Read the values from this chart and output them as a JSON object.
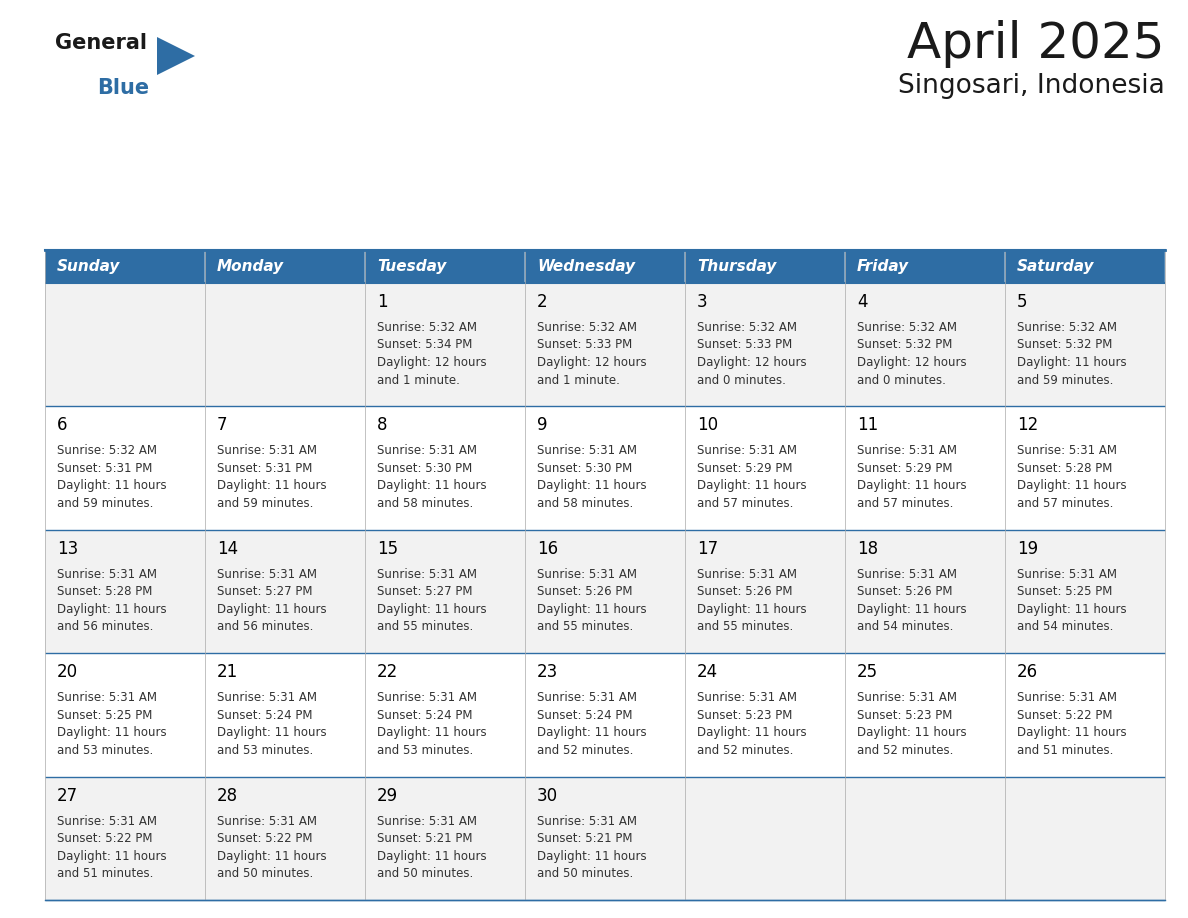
{
  "title": "April 2025",
  "subtitle": "Singosari, Indonesia",
  "header_bg": "#2E6DA4",
  "header_text_color": "#FFFFFF",
  "day_names": [
    "Sunday",
    "Monday",
    "Tuesday",
    "Wednesday",
    "Thursday",
    "Friday",
    "Saturday"
  ],
  "cell_bg_white": "#FFFFFF",
  "cell_bg_gray": "#F2F2F2",
  "border_color": "#2E6DA4",
  "separator_color": "#2E6DA4",
  "day_number_color": "#000000",
  "cell_text_color": "#333333",
  "calendar": [
    [
      {
        "day": null,
        "info": ""
      },
      {
        "day": null,
        "info": ""
      },
      {
        "day": 1,
        "info": "Sunrise: 5:32 AM\nSunset: 5:34 PM\nDaylight: 12 hours\nand 1 minute."
      },
      {
        "day": 2,
        "info": "Sunrise: 5:32 AM\nSunset: 5:33 PM\nDaylight: 12 hours\nand 1 minute."
      },
      {
        "day": 3,
        "info": "Sunrise: 5:32 AM\nSunset: 5:33 PM\nDaylight: 12 hours\nand 0 minutes."
      },
      {
        "day": 4,
        "info": "Sunrise: 5:32 AM\nSunset: 5:32 PM\nDaylight: 12 hours\nand 0 minutes."
      },
      {
        "day": 5,
        "info": "Sunrise: 5:32 AM\nSunset: 5:32 PM\nDaylight: 11 hours\nand 59 minutes."
      }
    ],
    [
      {
        "day": 6,
        "info": "Sunrise: 5:32 AM\nSunset: 5:31 PM\nDaylight: 11 hours\nand 59 minutes."
      },
      {
        "day": 7,
        "info": "Sunrise: 5:31 AM\nSunset: 5:31 PM\nDaylight: 11 hours\nand 59 minutes."
      },
      {
        "day": 8,
        "info": "Sunrise: 5:31 AM\nSunset: 5:30 PM\nDaylight: 11 hours\nand 58 minutes."
      },
      {
        "day": 9,
        "info": "Sunrise: 5:31 AM\nSunset: 5:30 PM\nDaylight: 11 hours\nand 58 minutes."
      },
      {
        "day": 10,
        "info": "Sunrise: 5:31 AM\nSunset: 5:29 PM\nDaylight: 11 hours\nand 57 minutes."
      },
      {
        "day": 11,
        "info": "Sunrise: 5:31 AM\nSunset: 5:29 PM\nDaylight: 11 hours\nand 57 minutes."
      },
      {
        "day": 12,
        "info": "Sunrise: 5:31 AM\nSunset: 5:28 PM\nDaylight: 11 hours\nand 57 minutes."
      }
    ],
    [
      {
        "day": 13,
        "info": "Sunrise: 5:31 AM\nSunset: 5:28 PM\nDaylight: 11 hours\nand 56 minutes."
      },
      {
        "day": 14,
        "info": "Sunrise: 5:31 AM\nSunset: 5:27 PM\nDaylight: 11 hours\nand 56 minutes."
      },
      {
        "day": 15,
        "info": "Sunrise: 5:31 AM\nSunset: 5:27 PM\nDaylight: 11 hours\nand 55 minutes."
      },
      {
        "day": 16,
        "info": "Sunrise: 5:31 AM\nSunset: 5:26 PM\nDaylight: 11 hours\nand 55 minutes."
      },
      {
        "day": 17,
        "info": "Sunrise: 5:31 AM\nSunset: 5:26 PM\nDaylight: 11 hours\nand 55 minutes."
      },
      {
        "day": 18,
        "info": "Sunrise: 5:31 AM\nSunset: 5:26 PM\nDaylight: 11 hours\nand 54 minutes."
      },
      {
        "day": 19,
        "info": "Sunrise: 5:31 AM\nSunset: 5:25 PM\nDaylight: 11 hours\nand 54 minutes."
      }
    ],
    [
      {
        "day": 20,
        "info": "Sunrise: 5:31 AM\nSunset: 5:25 PM\nDaylight: 11 hours\nand 53 minutes."
      },
      {
        "day": 21,
        "info": "Sunrise: 5:31 AM\nSunset: 5:24 PM\nDaylight: 11 hours\nand 53 minutes."
      },
      {
        "day": 22,
        "info": "Sunrise: 5:31 AM\nSunset: 5:24 PM\nDaylight: 11 hours\nand 53 minutes."
      },
      {
        "day": 23,
        "info": "Sunrise: 5:31 AM\nSunset: 5:24 PM\nDaylight: 11 hours\nand 52 minutes."
      },
      {
        "day": 24,
        "info": "Sunrise: 5:31 AM\nSunset: 5:23 PM\nDaylight: 11 hours\nand 52 minutes."
      },
      {
        "day": 25,
        "info": "Sunrise: 5:31 AM\nSunset: 5:23 PM\nDaylight: 11 hours\nand 52 minutes."
      },
      {
        "day": 26,
        "info": "Sunrise: 5:31 AM\nSunset: 5:22 PM\nDaylight: 11 hours\nand 51 minutes."
      }
    ],
    [
      {
        "day": 27,
        "info": "Sunrise: 5:31 AM\nSunset: 5:22 PM\nDaylight: 11 hours\nand 51 minutes."
      },
      {
        "day": 28,
        "info": "Sunrise: 5:31 AM\nSunset: 5:22 PM\nDaylight: 11 hours\nand 50 minutes."
      },
      {
        "day": 29,
        "info": "Sunrise: 5:31 AM\nSunset: 5:21 PM\nDaylight: 11 hours\nand 50 minutes."
      },
      {
        "day": 30,
        "info": "Sunrise: 5:31 AM\nSunset: 5:21 PM\nDaylight: 11 hours\nand 50 minutes."
      },
      {
        "day": null,
        "info": ""
      },
      {
        "day": null,
        "info": ""
      },
      {
        "day": null,
        "info": ""
      }
    ]
  ]
}
